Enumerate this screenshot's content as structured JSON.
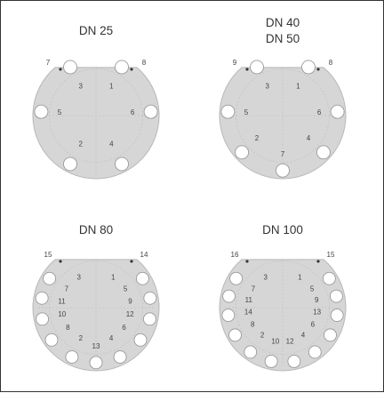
{
  "flanges": [
    {
      "title_lines": [
        "DN 25"
      ],
      "holes": [
        {
          "n": "3",
          "a": 118,
          "hole": true,
          "lr": 0.52,
          "ld": 10
        },
        {
          "n": "1",
          "a": 62,
          "hole": true,
          "lr": 0.52,
          "ld": 10
        },
        {
          "n": "5",
          "a": 176,
          "hole": true,
          "lr": 0.58,
          "ld": -12
        },
        {
          "n": "6",
          "a": 4,
          "hole": true,
          "lr": 0.58,
          "ld": -12
        },
        {
          "n": "2",
          "a": 242,
          "hole": true,
          "lr": 0.52,
          "ld": 12
        },
        {
          "n": "4",
          "a": 298,
          "hole": true,
          "lr": 0.52,
          "ld": 12
        }
      ],
      "corner_left": "7",
      "corner_right": "8"
    },
    {
      "title_lines": [
        "DN 40",
        "DN 50"
      ],
      "holes": [
        {
          "n": "3",
          "a": 118,
          "hole": true,
          "lr": 0.52,
          "ld": 10
        },
        {
          "n": "1",
          "a": 62,
          "hole": true,
          "lr": 0.52,
          "ld": 10
        },
        {
          "n": "5",
          "a": 176,
          "hole": true,
          "lr": 0.58,
          "ld": -12
        },
        {
          "n": "6",
          "a": 4,
          "hole": true,
          "lr": 0.58,
          "ld": -12
        },
        {
          "n": "2",
          "a": 222,
          "hole": true,
          "lr": 0.55,
          "ld": 12
        },
        {
          "n": "4",
          "a": 318,
          "hole": true,
          "lr": 0.55,
          "ld": 12
        },
        {
          "n": "7",
          "a": 270,
          "hole": true,
          "lr": 0.62,
          "ld": -10
        }
      ],
      "corner_left": "9",
      "corner_right": "8"
    },
    {
      "title_lines": [
        "DN 80"
      ],
      "holes": [
        {
          "n": "3",
          "a": 116,
          "hole": false,
          "lr": 0.62,
          "ld": 0
        },
        {
          "n": "1",
          "a": 64,
          "hole": false,
          "lr": 0.62,
          "ld": 0
        },
        {
          "n": "7",
          "a": 148,
          "hole": true,
          "lr": 0.55,
          "ld": 12
        },
        {
          "n": "5",
          "a": 32,
          "hole": true,
          "lr": 0.55,
          "ld": 12
        },
        {
          "n": "11",
          "a": 170,
          "hole": true,
          "lr": 0.55,
          "ld": 14
        },
        {
          "n": "9",
          "a": 10,
          "hole": true,
          "lr": 0.55,
          "ld": 14
        },
        {
          "n": "10",
          "a": 192,
          "hole": true,
          "lr": 0.55,
          "ld": 14
        },
        {
          "n": "12",
          "a": 348,
          "hole": true,
          "lr": 0.55,
          "ld": 14
        },
        {
          "n": "8",
          "a": 216,
          "hole": true,
          "lr": 0.55,
          "ld": 12
        },
        {
          "n": "6",
          "a": 324,
          "hole": true,
          "lr": 0.55,
          "ld": 12
        },
        {
          "n": "2",
          "a": 244,
          "hole": true,
          "lr": 0.55,
          "ld": 12
        },
        {
          "n": "4",
          "a": 296,
          "hole": true,
          "lr": 0.55,
          "ld": 12
        },
        {
          "n": "13",
          "a": 270,
          "hole": true,
          "lr": 0.62,
          "ld": 0
        }
      ],
      "corner_left": "15",
      "corner_right": "14"
    },
    {
      "title_lines": [
        "DN 100"
      ],
      "holes": [
        {
          "n": "3",
          "a": 116,
          "hole": false,
          "lr": 0.62,
          "ld": 0
        },
        {
          "n": "1",
          "a": 64,
          "hole": false,
          "lr": 0.62,
          "ld": 0
        },
        {
          "n": "7",
          "a": 148,
          "hole": true,
          "lr": 0.55,
          "ld": 12
        },
        {
          "n": "5",
          "a": 32,
          "hole": true,
          "lr": 0.55,
          "ld": 12
        },
        {
          "n": "11",
          "a": 168,
          "hole": true,
          "lr": 0.55,
          "ld": 14
        },
        {
          "n": "9",
          "a": 12,
          "hole": true,
          "lr": 0.55,
          "ld": 14
        },
        {
          "n": "14",
          "a": 188,
          "hole": true,
          "lr": 0.55,
          "ld": 14
        },
        {
          "n": "13",
          "a": 352,
          "hole": true,
          "lr": 0.55,
          "ld": 14
        },
        {
          "n": "8",
          "a": 210,
          "hole": true,
          "lr": 0.55,
          "ld": 12
        },
        {
          "n": "6",
          "a": 330,
          "hole": true,
          "lr": 0.55,
          "ld": 12
        },
        {
          "n": "2",
          "a": 234,
          "hole": true,
          "lr": 0.55,
          "ld": 12
        },
        {
          "n": "4",
          "a": 306,
          "hole": true,
          "lr": 0.55,
          "ld": 12
        },
        {
          "n": "10",
          "a": 258,
          "hole": true,
          "lr": 0.55,
          "ld": 0
        },
        {
          "n": "12",
          "a": 282,
          "hole": true,
          "lr": 0.55,
          "ld": 0
        }
      ],
      "corner_left": "16",
      "corner_right": "15"
    }
  ]
}
